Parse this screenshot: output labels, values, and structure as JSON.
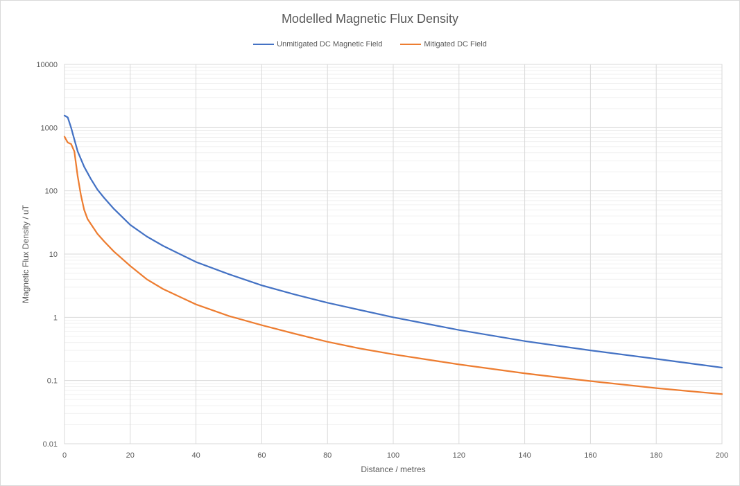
{
  "chart_data": {
    "type": "line",
    "title": "Modelled Magnetic Flux Density",
    "xlabel": "Distance / metres",
    "ylabel": "Magnetic Flux Density / uT",
    "xlim": [
      0,
      200
    ],
    "ylim": [
      0.01,
      10000
    ],
    "yscale": "log",
    "x_ticks": [
      "0",
      "20",
      "40",
      "60",
      "80",
      "100",
      "120",
      "140",
      "160",
      "180",
      "200"
    ],
    "y_ticks": [
      "0.01",
      "0.1",
      "1",
      "10",
      "100",
      "1000",
      "10000"
    ],
    "grid": true,
    "legend_position": "top",
    "series": [
      {
        "name": "Unmitigated DC Magnetic Field",
        "color": "#4472C4",
        "x": [
          0,
          1,
          2,
          3,
          4,
          6,
          8,
          10,
          12,
          15,
          20,
          25,
          30,
          40,
          50,
          60,
          70,
          80,
          90,
          100,
          120,
          140,
          160,
          180,
          200
        ],
        "y": [
          1550,
          1450,
          1000,
          650,
          420,
          240,
          155,
          105,
          78,
          52,
          29,
          19,
          13.5,
          7.5,
          4.8,
          3.2,
          2.3,
          1.7,
          1.3,
          1.0,
          0.63,
          0.42,
          0.3,
          0.22,
          0.16
        ]
      },
      {
        "name": "Mitigated DC Field",
        "color": "#ED7D31",
        "x": [
          0,
          1,
          2,
          3,
          4,
          5,
          6,
          7,
          8,
          10,
          12,
          15,
          20,
          25,
          30,
          40,
          50,
          60,
          70,
          80,
          90,
          100,
          120,
          140,
          160,
          180,
          200
        ],
        "y": [
          720,
          580,
          550,
          420,
          170,
          85,
          50,
          36,
          30,
          21,
          16,
          11,
          6.5,
          4.0,
          2.8,
          1.6,
          1.05,
          0.75,
          0.55,
          0.41,
          0.32,
          0.26,
          0.18,
          0.13,
          0.098,
          0.076,
          0.061
        ]
      }
    ]
  }
}
